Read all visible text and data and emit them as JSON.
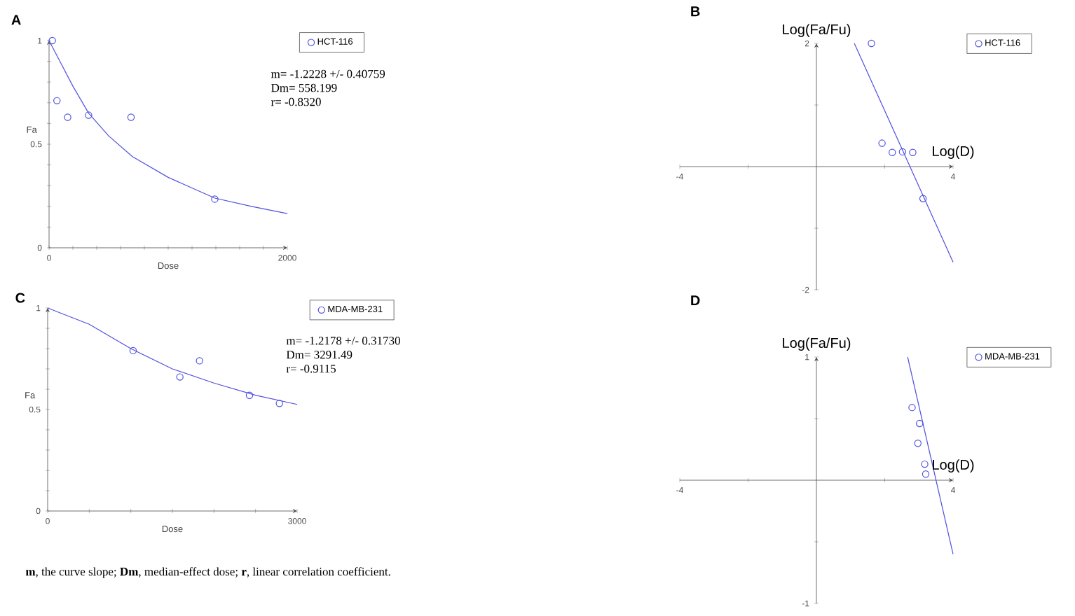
{
  "chart_data": [
    {
      "type": "scatter",
      "title": "A",
      "xlabel": "Dose",
      "ylabel": "Fa",
      "xlim": [
        0,
        2000
      ],
      "ylim": [
        0,
        1
      ],
      "xticks": [
        0,
        {
          "value": 200,
          "label": null
        },
        {
          "value": 400,
          "label": null
        },
        {
          "value": 600,
          "label": null
        },
        {
          "value": 800,
          "label": null
        },
        {
          "value": 1000,
          "label": null
        },
        {
          "value": 1200,
          "label": null
        },
        {
          "value": 1400,
          "label": null
        },
        {
          "value": 1600,
          "label": null
        },
        {
          "value": 1800,
          "label": null
        },
        2000
      ],
      "yticks": [
        0,
        {
          "value": 0.1,
          "label": null
        },
        {
          "value": 0.2,
          "label": null
        },
        {
          "value": 0.3,
          "label": null
        },
        {
          "value": 0.4,
          "label": null
        },
        0.5,
        {
          "value": 0.6,
          "label": null
        },
        {
          "value": 0.7,
          "label": null
        },
        {
          "value": 0.8,
          "label": null
        },
        {
          "value": 0.9,
          "label": null
        },
        1
      ],
      "marker": "circle",
      "legend": "top right",
      "series": [
        {
          "name": "HCT-116",
          "color": "#5050e0",
          "x": [
            27,
            66,
            156,
            332,
            688,
            1391
          ],
          "values": [
            1.0,
            0.71,
            0.63,
            0.64,
            0.63,
            0.235
          ]
        },
        {
          "type": "line",
          "marker": "none",
          "color": "#5050e0",
          "x": [
            0,
            100,
            200,
            332,
            500,
            700,
            1000,
            1391,
            1700,
            2000
          ],
          "values": [
            1.0,
            0.89,
            0.78,
            0.65,
            0.54,
            0.44,
            0.34,
            0.24,
            0.2,
            0.165
          ]
        }
      ],
      "annotations": [
        "m= -1.2228 +/- 0.40759",
        "Dm= 558.199",
        "r= -0.8320"
      ]
    },
    {
      "type": "scatter",
      "title": "B",
      "xlabel": "Log(D)",
      "ylabel": "Log(Fa/Fu)",
      "xlim": [
        -4,
        4
      ],
      "ylim": [
        -2,
        2
      ],
      "xticks": [
        -4,
        {
          "value": -2,
          "label": null
        },
        {
          "value": 0,
          "label": null
        },
        {
          "value": 2,
          "label": null
        },
        4
      ],
      "yticks": [
        -2,
        {
          "value": -1,
          "label": null
        },
        {
          "value": 0,
          "label": null
        },
        {
          "value": 1,
          "label": null
        },
        2
      ],
      "marker": "circle",
      "legend": "top right",
      "series": [
        {
          "name": "HCT-116",
          "color": "#5050e0",
          "x": [
            1.61,
            1.92,
            2.22,
            2.52,
            2.82,
            3.12
          ],
          "values": [
            2.0,
            0.38,
            0.23,
            0.24,
            0.23,
            -0.52
          ]
        },
        {
          "type": "line",
          "marker": "none",
          "color": "#5050e0",
          "x": [
            1.11,
            4.0
          ],
          "values": [
            2.0,
            -1.55
          ]
        }
      ]
    },
    {
      "type": "scatter",
      "title": "C",
      "xlabel": "Dose",
      "ylabel": "Fa",
      "xlim": [
        0,
        3000
      ],
      "ylim": [
        0,
        1
      ],
      "xticks": [
        0,
        {
          "value": 500,
          "label": null
        },
        {
          "value": 1000,
          "label": null
        },
        {
          "value": 1500,
          "label": null
        },
        {
          "value": 2000,
          "label": null
        },
        {
          "value": 2500,
          "label": null
        },
        3000
      ],
      "yticks": [
        0,
        {
          "value": 0.1,
          "label": null
        },
        {
          "value": 0.2,
          "label": null
        },
        {
          "value": 0.3,
          "label": null
        },
        {
          "value": 0.4,
          "label": null
        },
        0.5,
        {
          "value": 0.6,
          "label": null
        },
        {
          "value": 0.7,
          "label": null
        },
        {
          "value": 0.8,
          "label": null
        },
        {
          "value": 0.9,
          "label": null
        },
        1
      ],
      "marker": "circle",
      "legend": "top right",
      "series": [
        {
          "name": "MDA-MB-231",
          "color": "#5050e0",
          "x": [
            1028,
            1590,
            1826,
            2427,
            2787
          ],
          "values": [
            0.79,
            0.66,
            0.74,
            0.57,
            0.53
          ]
        },
        {
          "type": "line",
          "marker": "none",
          "color": "#5050e0",
          "x": [
            0,
            500,
            1000,
            1500,
            2000,
            2500,
            3000
          ],
          "values": [
            1.0,
            0.92,
            0.8,
            0.7,
            0.63,
            0.57,
            0.525
          ]
        }
      ],
      "annotations": [
        "m= -1.2178 +/- 0.31730",
        "Dm= 3291.49",
        "r= -0.9115",
        "**m**, the curve slope; **Dm**, median-effect dose; **r**, linear correlation coefficient."
      ]
    },
    {
      "type": "scatter",
      "title": "D",
      "xlabel": "Log(D)",
      "ylabel": "Log(Fa/Fu)",
      "xlim": [
        -4,
        4
      ],
      "ylim": [
        -1,
        1
      ],
      "xticks": [
        -4,
        {
          "value": -2,
          "label": null
        },
        {
          "value": 0,
          "label": null
        },
        {
          "value": 2,
          "label": null
        },
        4
      ],
      "yticks": [
        -1,
        {
          "value": -0.5,
          "label": null
        },
        {
          "value": 0,
          "label": null
        },
        {
          "value": 0.5,
          "label": null
        },
        1
      ],
      "marker": "circle",
      "legend": "top right",
      "series": [
        {
          "name": "MDA-MB-231",
          "color": "#5050e0",
          "x": [
            2.8,
            3.02,
            2.97,
            3.17,
            3.2
          ],
          "values": [
            0.59,
            0.46,
            0.3,
            0.13,
            0.05
          ]
        },
        {
          "type": "line",
          "marker": "none",
          "color": "#5050e0",
          "x": [
            2.67,
            4.0
          ],
          "values": [
            1.0,
            -0.6
          ]
        }
      ]
    }
  ]
}
